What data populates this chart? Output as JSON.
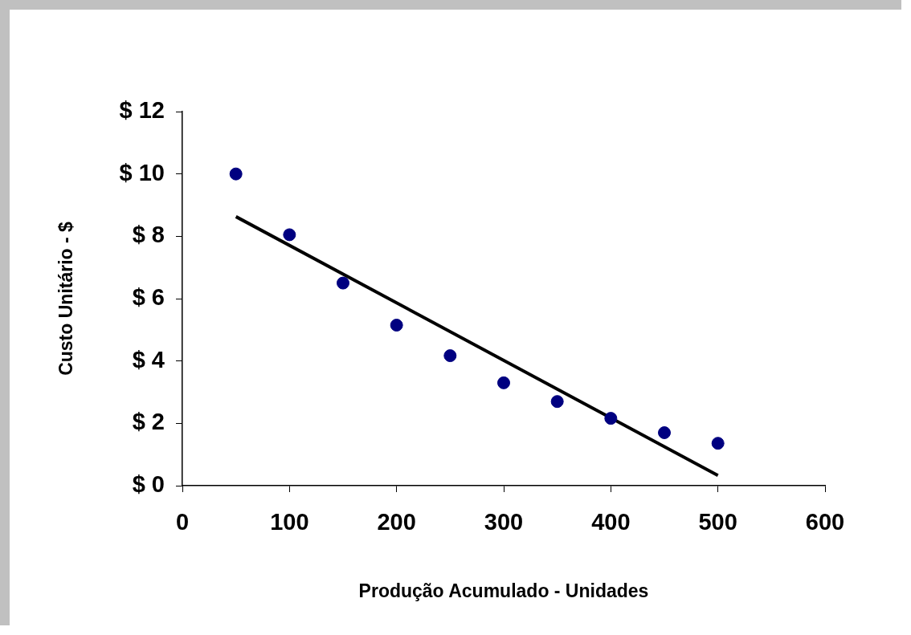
{
  "chart_data": {
    "type": "scatter",
    "xlabel": "Produção Acumulado - Unidades",
    "ylabel": "Custo Unitário - $",
    "x": [
      50,
      100,
      150,
      200,
      250,
      300,
      350,
      400,
      450,
      500
    ],
    "series": [
      {
        "color": "#000080",
        "marker": "circle",
        "values": [
          10.0,
          8.05,
          6.5,
          5.15,
          4.17,
          3.3,
          2.7,
          2.16,
          1.7,
          1.36
        ]
      },
      {
        "type": "line",
        "color": "#000000",
        "marker": "none",
        "x": [
          50,
          500
        ],
        "values": [
          8.63,
          0.33
        ]
      }
    ],
    "xlim": [
      0,
      600
    ],
    "xticks": [
      0,
      100,
      200,
      300,
      400,
      500,
      600
    ],
    "ylim": [
      0,
      12
    ],
    "yticks": [
      {
        "value": 0,
        "label": "$ 0"
      },
      {
        "value": 2,
        "label": "$ 2"
      },
      {
        "value": 4,
        "label": "$ 4"
      },
      {
        "value": 6,
        "label": "$ 6"
      },
      {
        "value": 8,
        "label": "$ 8"
      },
      {
        "value": 10,
        "label": "$ 10"
      },
      {
        "value": 12,
        "label": "$ 12"
      }
    ],
    "grid": false,
    "legend": false
  }
}
